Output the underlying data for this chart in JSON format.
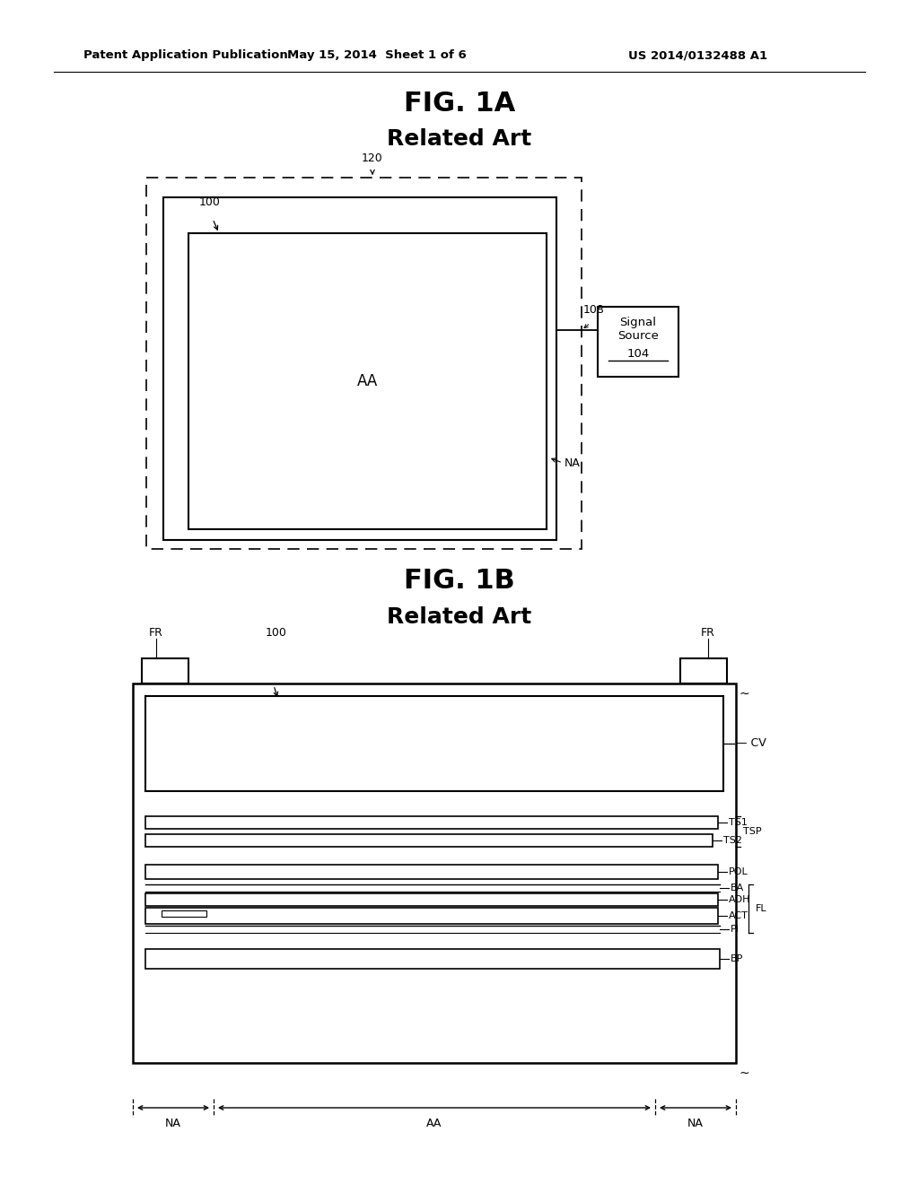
{
  "bg_color": "#ffffff",
  "header_left": "Patent Application Publication",
  "header_mid": "May 15, 2014  Sheet 1 of 6",
  "header_right": "US 2014/0132488 A1",
  "fig1a_title": "FIG. 1A",
  "fig1a_subtitle": "Related Art",
  "fig1b_title": "FIG. 1B",
  "fig1b_subtitle": "Related Art",
  "line_color": "#000000",
  "text_color": "#000000"
}
